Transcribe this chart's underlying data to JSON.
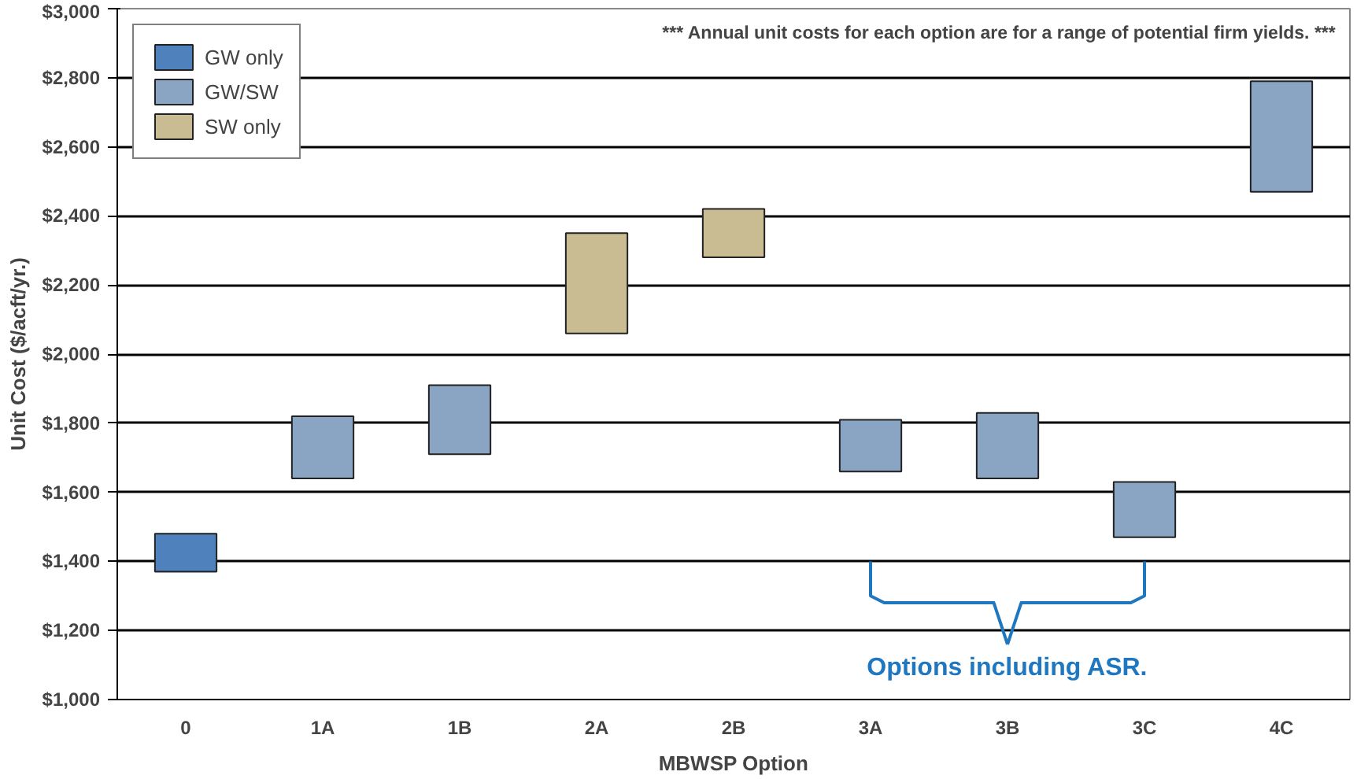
{
  "chart_data": {
    "type": "bar",
    "xlabel": "MBWSP Option",
    "ylabel": "Unit Cost ($/acft/yr.)",
    "categories": [
      "0",
      "1A",
      "1B",
      "2A",
      "2B",
      "3A",
      "3B",
      "3C",
      "4C"
    ],
    "series": [
      {
        "name": "GW only",
        "color": "#4f81bd",
        "values": [
          110,
          null,
          null,
          null,
          null,
          null,
          null,
          null,
          null
        ],
        "base": [
          1370,
          null,
          null,
          null,
          null,
          null,
          null,
          null,
          null
        ]
      },
      {
        "name": "GW/SW",
        "color": "#8aa4c4",
        "values": [
          null,
          180,
          200,
          null,
          null,
          150,
          190,
          160,
          320
        ],
        "base": [
          null,
          1640,
          1710,
          null,
          null,
          1660,
          1640,
          1470,
          2470
        ]
      },
      {
        "name": "SW only",
        "color": "#c9bc93",
        "values": [
          null,
          null,
          null,
          290,
          140,
          null,
          null,
          null,
          null
        ],
        "base": [
          null,
          null,
          null,
          2060,
          2280,
          null,
          null,
          null,
          null
        ]
      }
    ],
    "ylim": [
      1000,
      3000
    ],
    "yticks": [
      {
        "value": 1000,
        "label": "$1,000"
      },
      {
        "value": 1200,
        "label": "$1,200"
      },
      {
        "value": 1400,
        "label": "$1,400"
      },
      {
        "value": 1600,
        "label": "$1,600"
      },
      {
        "value": 1800,
        "label": "$1,800"
      },
      {
        "value": 2000,
        "label": "$2,000"
      },
      {
        "value": 2200,
        "label": "$2,200"
      },
      {
        "value": 2400,
        "label": "$2,400"
      },
      {
        "value": 2600,
        "label": "$2,600"
      },
      {
        "value": 2800,
        "label": "$2,800"
      },
      {
        "value": 3000,
        "label": "$3,000"
      }
    ],
    "grid": "y",
    "legend": "top left",
    "annotations": [
      "*** Annual unit costs for each option are for a range of potential firm yields. ***",
      "Options including ASR."
    ]
  }
}
